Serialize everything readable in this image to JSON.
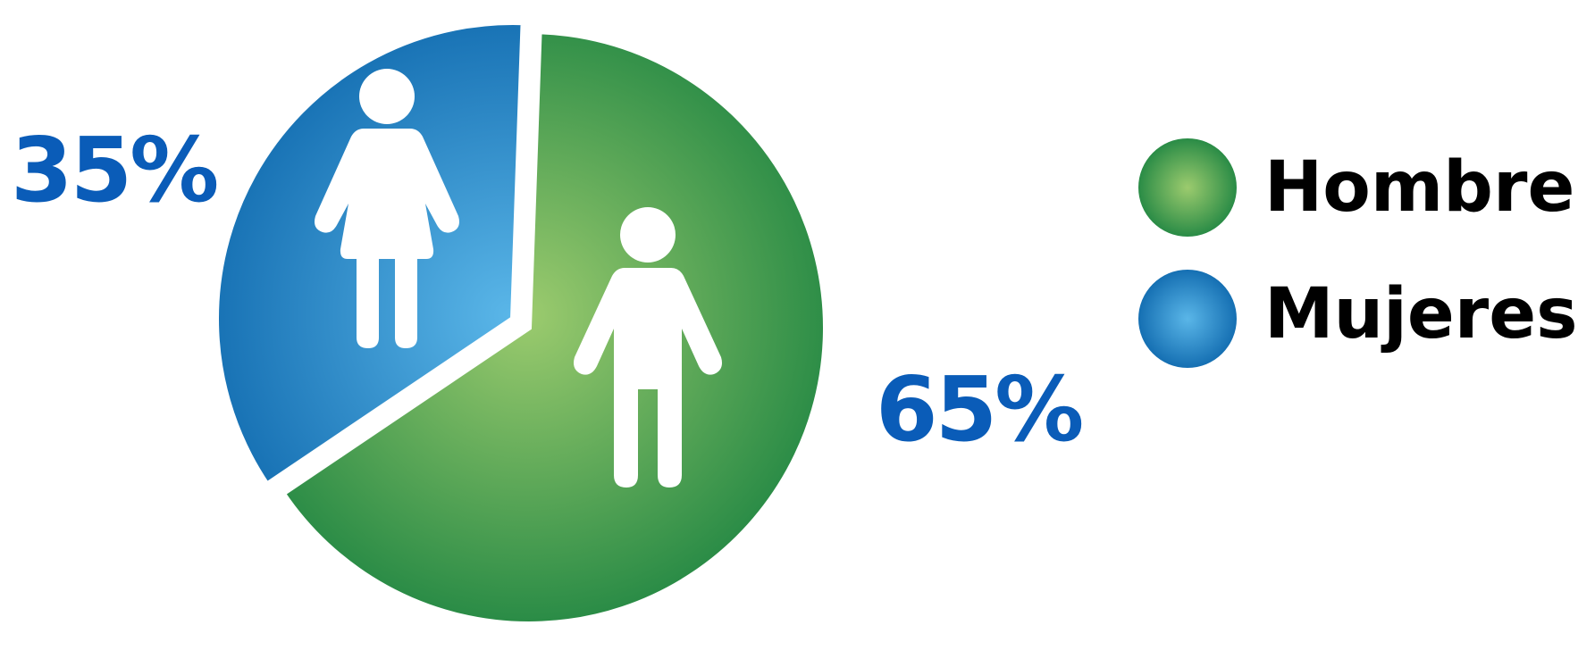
{
  "chart_data": {
    "type": "pie",
    "series": [
      {
        "name": "Hombres",
        "value": 65,
        "label": "65%",
        "color": "#1e8542",
        "highlight": "#9ccb6e"
      },
      {
        "name": "Mujeres",
        "value": 35,
        "label": "35%",
        "color": "#0e68ad",
        "highlight": "#5ab6e8"
      }
    ],
    "label_color": "#0a5cb8",
    "legend": {
      "position": "right",
      "items": [
        "Hombres",
        "Mujeres"
      ]
    },
    "icons": {
      "Hombres": "man-icon",
      "Mujeres": "woman-icon"
    }
  }
}
